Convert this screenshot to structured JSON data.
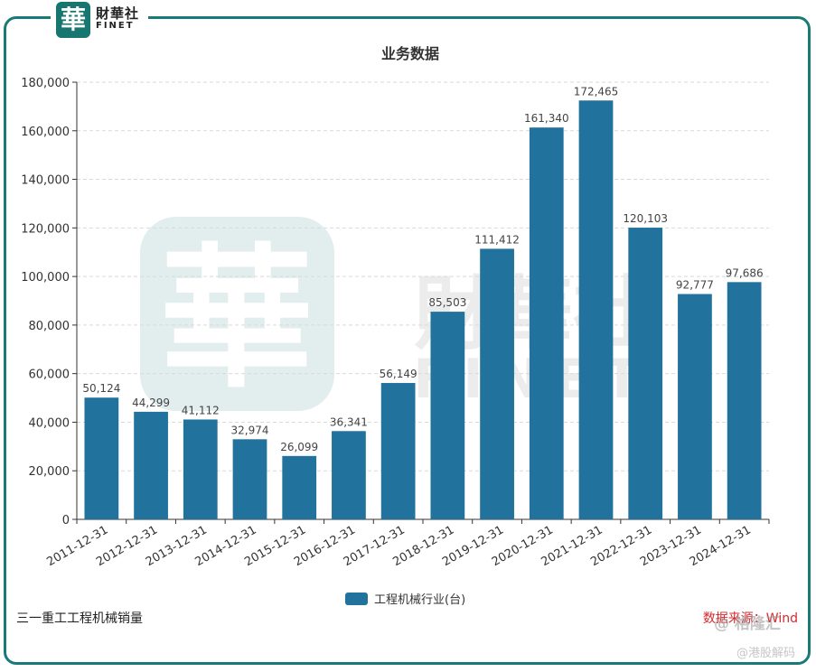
{
  "brand": {
    "logo_glyph": "華",
    "name_cn": "財華社",
    "name_en": "FINET",
    "color": "#17766f"
  },
  "chart_data": {
    "type": "bar",
    "title": "业务数据",
    "categories": [
      "2011-12-31",
      "2012-12-31",
      "2013-12-31",
      "2014-12-31",
      "2015-12-31",
      "2016-12-31",
      "2017-12-31",
      "2018-12-31",
      "2019-12-31",
      "2020-12-31",
      "2021-12-31",
      "2022-12-31",
      "2023-12-31",
      "2024-12-31"
    ],
    "series": [
      {
        "name": "工程机械行业(台)",
        "values": [
          50124,
          44299,
          41112,
          32974,
          26099,
          36341,
          56149,
          85503,
          111412,
          161340,
          172465,
          120103,
          92777,
          97686
        ],
        "color": "#22729e"
      }
    ],
    "value_labels": [
      "50,124",
      "44,299",
      "41,112",
      "32,974",
      "26,099",
      "36,341",
      "56,149",
      "85,503",
      "111,412",
      "161,340",
      "172,465",
      "120,103",
      "92,777",
      "97,686"
    ],
    "ylim": [
      0,
      180000
    ],
    "yticks": [
      0,
      20000,
      40000,
      60000,
      80000,
      100000,
      120000,
      140000,
      160000,
      180000
    ],
    "ytick_labels": [
      "0",
      "20,000",
      "40,000",
      "60,000",
      "80,000",
      "100,000",
      "120,000",
      "140,000",
      "160,000",
      "180,000"
    ],
    "grid": true,
    "legend_position": "bottom-center",
    "xlabel": "",
    "ylabel": ""
  },
  "footer": {
    "caption": "三一重工工程机械销量",
    "source": "数据来源：Wind"
  },
  "watermark": {
    "glyph": "華",
    "name_cn": "財華社",
    "name_en": "FINET",
    "corner_top": "@ 格隆汇",
    "corner_bottom": "@港股解码"
  }
}
